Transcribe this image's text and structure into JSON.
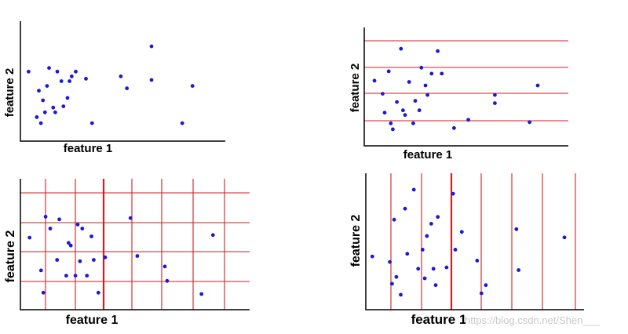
{
  "watermark": "https://blog.csdn.net/Shen___",
  "colors": {
    "points": "#1a1ad6",
    "grid": "#d31f1f",
    "axis": "#000000"
  },
  "chart_data": [
    {
      "type": "scatter",
      "xlabel": "feature 1",
      "ylabel": "feature 2",
      "grid": "none",
      "xlim": [
        0,
        100
      ],
      "ylim": [
        0,
        100
      ],
      "x": [
        4,
        8,
        9,
        10,
        11,
        12,
        13,
        14,
        16,
        17,
        18,
        20,
        21,
        23,
        24,
        25,
        27,
        32,
        35,
        49,
        52,
        64,
        64,
        79,
        84
      ],
      "y": [
        58,
        20,
        42,
        15,
        34,
        24,
        46,
        61,
        28,
        24,
        58,
        50,
        29,
        36,
        50,
        54,
        58,
        52,
        15,
        54,
        44,
        51,
        79,
        15,
        46
      ]
    },
    {
      "type": "scatter",
      "xlabel": "feature 1",
      "ylabel": "feature 2",
      "grid": "horizontal",
      "xlim": [
        0,
        100
      ],
      "ylim": [
        0,
        100
      ],
      "x": [
        5,
        9,
        10,
        12,
        13,
        14,
        16,
        18,
        19,
        20,
        22,
        24,
        25,
        27,
        28,
        30,
        31,
        33,
        36,
        38,
        44,
        51,
        64,
        64,
        81,
        85
      ],
      "y": [
        55,
        44,
        28,
        63,
        19,
        14,
        37,
        82,
        30,
        26,
        54,
        19,
        38,
        30,
        66,
        51,
        43,
        61,
        80,
        61,
        15,
        22,
        43,
        36,
        20,
        51
      ]
    },
    {
      "type": "scatter",
      "xlabel": "feature 1",
      "ylabel": "feature 2",
      "grid": "both",
      "xlim": [
        0,
        100
      ],
      "ylim": [
        0,
        100
      ],
      "x": [
        4,
        9,
        10,
        11,
        13,
        16,
        17,
        20,
        21,
        22,
        24,
        25,
        26,
        27,
        29,
        31,
        32,
        34,
        37,
        48,
        51,
        63,
        64,
        79,
        84
      ],
      "y": [
        55,
        30,
        13,
        71,
        62,
        38,
        69,
        26,
        51,
        49,
        26,
        65,
        37,
        62,
        26,
        56,
        38,
        13,
        40,
        70,
        41,
        33,
        22,
        12,
        57
      ]
    },
    {
      "type": "scatter",
      "xlabel": "feature 1",
      "ylabel": "feature 2",
      "grid": "vertical",
      "xlim": [
        0,
        100
      ],
      "ylim": [
        0,
        100
      ],
      "x": [
        3,
        11,
        12,
        13,
        14,
        16,
        18,
        19,
        22,
        24,
        26,
        27,
        28,
        30,
        31,
        32,
        33,
        37,
        40,
        41,
        44,
        51,
        53,
        55,
        69,
        70,
        91
      ],
      "y": [
        39,
        35,
        19,
        66,
        24,
        11,
        74,
        41,
        88,
        30,
        44,
        23,
        54,
        63,
        30,
        18,
        68,
        31,
        85,
        44,
        57,
        36,
        12,
        18,
        59,
        29,
        53
      ]
    }
  ]
}
